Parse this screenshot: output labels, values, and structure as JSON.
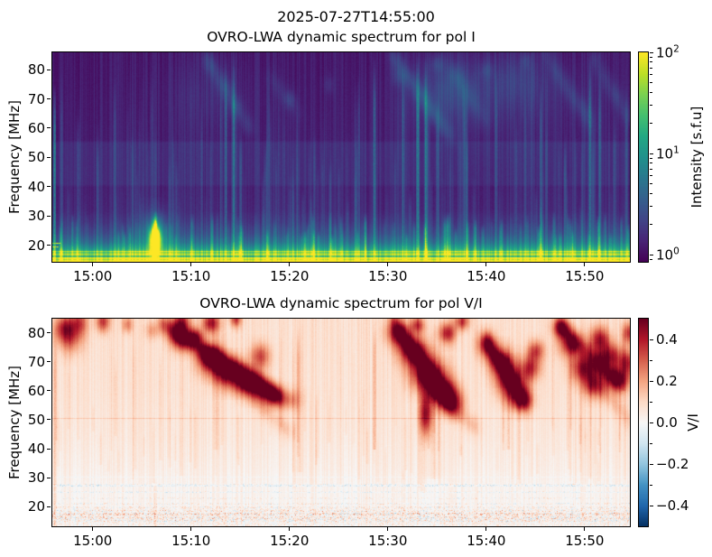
{
  "figure": {
    "suptitle": "2025-07-27T14:55:00",
    "background": "#ffffff",
    "axis_color": "#000000"
  },
  "chart_data": [
    {
      "type": "heatmap",
      "title": "OVRO-LWA dynamic spectrum for pol I",
      "xlabel": "",
      "ylabel": "Frequency [MHz]",
      "x_axis": {
        "unit": "UTC time",
        "tick_labels": [
          "15:00",
          "15:10",
          "15:20",
          "15:30",
          "15:40",
          "15:50"
        ],
        "tick_minutes": [
          0,
          10,
          20,
          30,
          40,
          50
        ],
        "range_minutes": [
          -4.1,
          54.6
        ]
      },
      "y_axis": {
        "unit": "MHz",
        "ticks": [
          20,
          30,
          40,
          50,
          60,
          70,
          80
        ],
        "range": [
          14.3,
          85.9
        ]
      },
      "colorbar": {
        "label": "Intensity [s.f.u]",
        "scale": "log",
        "range": [
          0.85,
          100
        ],
        "ticks": [
          {
            "text": "10",
            "exp": "2",
            "value": 100
          },
          {
            "text": "10",
            "exp": "1",
            "value": 10
          },
          {
            "text": "10",
            "exp": "0",
            "value": 1
          }
        ]
      },
      "colormap": {
        "name": "viridis",
        "stops": [
          [
            0,
            "#440154"
          ],
          [
            0.1,
            "#482475"
          ],
          [
            0.2,
            "#414487"
          ],
          [
            0.3,
            "#355f8d"
          ],
          [
            0.4,
            "#2a788e"
          ],
          [
            0.5,
            "#21918c"
          ],
          [
            0.6,
            "#22a884"
          ],
          [
            0.7,
            "#44bf70"
          ],
          [
            0.8,
            "#7ad151"
          ],
          [
            0.9,
            "#bddf26"
          ],
          [
            1,
            "#fde725"
          ]
        ]
      },
      "description": "Dark purple background with many narrow teal vertical bursts, diffuse drifting emission lanes at 55-86 MHz (strongest 15:25-15:55), a brighter band near 40-55 MHz, a bright yellow-green band below ~20 MHz with dashed RFI rows, and an intense yellow burst near 15:06 at 18-27 MHz.",
      "background_profile": [
        [
          86,
          0.07
        ],
        [
          56,
          0.09
        ],
        [
          55,
          0.135
        ],
        [
          41,
          0.135
        ],
        [
          40,
          0.1
        ],
        [
          32,
          0.115
        ],
        [
          28,
          0.16
        ],
        [
          24,
          0.24
        ],
        [
          21,
          0.36
        ],
        [
          19,
          0.52
        ],
        [
          18,
          0.66
        ],
        [
          17,
          0.84
        ],
        [
          16,
          0.97
        ],
        [
          14.3,
          1
        ]
      ],
      "vstreaks": [
        [
          -3.9,
          75,
          14,
          0.4,
          0.3
        ],
        [
          -3.2,
          80,
          14,
          0.1
        ],
        [
          -1.5,
          65,
          14,
          0.09
        ],
        [
          0.5,
          55,
          14,
          0.07
        ],
        [
          2.2,
          78,
          14,
          0.12
        ],
        [
          4,
          60,
          14,
          0.09
        ],
        [
          6.35,
          32,
          14,
          0.5,
          0.45
        ],
        [
          8.5,
          50,
          14,
          0.09
        ],
        [
          11,
          70,
          14,
          0.1
        ],
        [
          13.5,
          85,
          14,
          0.2
        ],
        [
          14.3,
          85,
          14,
          0.28
        ],
        [
          15,
          60,
          14,
          0.16
        ],
        [
          17.5,
          55,
          14,
          0.09
        ],
        [
          20,
          45,
          14,
          0.07
        ],
        [
          22.5,
          60,
          14,
          0.09
        ],
        [
          25,
          50,
          14,
          0.07
        ],
        [
          27,
          80,
          14,
          0.11
        ],
        [
          28.6,
          85,
          14,
          0.24
        ],
        [
          31.5,
          85,
          14,
          0.2
        ],
        [
          33,
          85,
          14,
          0.33
        ],
        [
          33.8,
          85,
          14,
          0.28
        ],
        [
          35,
          70,
          14,
          0.14
        ],
        [
          38,
          60,
          14,
          0.11
        ],
        [
          41,
          80,
          14,
          0.14
        ],
        [
          43,
          65,
          14,
          0.11
        ],
        [
          45.5,
          75,
          14,
          0.14
        ],
        [
          48,
          60,
          14,
          0.1
        ],
        [
          50.5,
          85,
          14,
          0.26
        ],
        [
          51.5,
          80,
          14,
          0.18
        ],
        [
          53,
          65,
          14,
          0.11
        ],
        [
          54.2,
          75,
          14,
          0.14
        ]
      ],
      "lanes": [
        [
          11.5,
          84,
          16,
          60,
          0.12
        ],
        [
          30.5,
          85,
          36.5,
          57,
          0.14
        ],
        [
          36.5,
          80,
          40,
          62,
          0.08
        ],
        [
          46,
          85,
          50.5,
          62,
          0.1
        ],
        [
          51,
          83,
          54.5,
          63,
          0.11
        ],
        [
          18,
          78,
          21,
          65,
          0.05
        ]
      ],
      "blobs": [
        [
          6.35,
          22,
          0.35,
          3,
          0.85
        ],
        [
          6.35,
          23.5,
          0.9,
          5,
          0.3
        ],
        [
          36,
          74,
          2.2,
          7,
          0.09
        ],
        [
          43,
          77,
          2.2,
          6,
          0.07
        ],
        [
          12,
          72,
          3,
          8,
          0.05
        ],
        [
          44,
          72,
          6,
          10,
          0.045
        ],
        [
          37,
          70,
          4,
          9,
          0.05
        ],
        [
          20,
          70,
          0.4,
          2,
          0.07
        ],
        [
          24,
          75,
          0.4,
          2,
          0.06
        ],
        [
          31,
          78,
          0.5,
          2.5,
          0.09
        ],
        [
          35,
          82,
          0.5,
          2,
          0.09
        ],
        [
          40,
          80,
          0.5,
          2,
          0.07
        ],
        [
          44,
          83,
          0.4,
          2,
          0.07
        ]
      ],
      "dash_rows": [
        [
          20.9,
          0.85
        ],
        [
          19.7,
          0.9
        ],
        [
          22.1,
          0.45
        ]
      ],
      "hlines": [
        [
          18.1,
          0.2,
          1
        ],
        [
          16.6,
          -0.3,
          2
        ],
        [
          15.2,
          -0.12,
          1
        ]
      ],
      "texture": {
        "seed": 13,
        "streaks": 120,
        "streak_strength": [
          0.02,
          0.09
        ],
        "streak_ftop": [
          28,
          86
        ],
        "streak_fbot": [
          14.3,
          14.3
        ],
        "low_streaks": 90,
        "low_strength": [
          0.04,
          0.2
        ],
        "low_ftop": [
          24,
          32
        ],
        "column_noise": 0.04,
        "pixel_noise": 0.012
      }
    },
    {
      "type": "heatmap",
      "title": "OVRO-LWA dynamic spectrum for pol V/I",
      "xlabel": "",
      "ylabel": "Frequency [MHz]",
      "x_axis": {
        "unit": "UTC time",
        "tick_labels": [
          "15:00",
          "15:10",
          "15:20",
          "15:30",
          "15:40",
          "15:50"
        ],
        "tick_minutes": [
          0,
          10,
          20,
          30,
          40,
          50
        ],
        "range_minutes": [
          -4.1,
          54.6
        ]
      },
      "y_axis": {
        "unit": "MHz",
        "ticks": [
          20,
          30,
          40,
          50,
          60,
          70,
          80
        ],
        "range": [
          13.2,
          84.9
        ]
      },
      "colorbar": {
        "label": "V/I",
        "scale": "linear",
        "range": [
          -0.5,
          0.5
        ],
        "ticks": [
          {
            "text": "0.4",
            "value": 0.4
          },
          {
            "text": "0.2",
            "value": 0.2
          },
          {
            "text": "0.0",
            "value": 0
          },
          {
            "text": "−0.2",
            "value": -0.2
          },
          {
            "text": "−0.4",
            "value": -0.4
          }
        ]
      },
      "colormap": {
        "name": "RdBu_r",
        "stops": [
          [
            0,
            "#053061"
          ],
          [
            0.1,
            "#2166ac"
          ],
          [
            0.2,
            "#4393c3"
          ],
          [
            0.3,
            "#92c5de"
          ],
          [
            0.4,
            "#d1e5f0"
          ],
          [
            0.5,
            "#f7f7f7"
          ],
          [
            0.6,
            "#fddbc7"
          ],
          [
            0.7,
            "#f4a582"
          ],
          [
            0.8,
            "#d6604d"
          ],
          [
            0.9,
            "#b2182b"
          ],
          [
            1,
            "#67001f"
          ]
        ]
      },
      "description": "Near-white background with faint pink positive polarization; dark red drifting burst clusters at 55-85 MHz near 15:05-15:20, 15:25-15:38, 15:40-15:46 and 15:47-15:55; speckled blue/red horizontal RFI rows below ~28 MHz.",
      "background_profile": [
        [
          85,
          0.585
        ],
        [
          60,
          0.575
        ],
        [
          45,
          0.557
        ],
        [
          33,
          0.535
        ],
        [
          28,
          0.52
        ],
        [
          13.2,
          0.512
        ]
      ],
      "vstreaks": [
        [
          -3.9,
          86,
          13.2,
          0.12,
          0.4
        ],
        [
          6.3,
          30,
          13.2,
          0.06,
          0.5
        ],
        [
          12.5,
          85,
          40,
          0.05,
          0.8
        ],
        [
          21,
          85,
          32,
          0.05,
          0.8
        ],
        [
          28.6,
          86,
          40,
          0.11,
          0.4
        ],
        [
          33.5,
          85,
          25,
          0.06,
          0.8
        ],
        [
          34.5,
          85,
          30,
          0.04,
          3
        ],
        [
          42.2,
          80,
          40,
          0.08,
          0.5
        ],
        [
          50.5,
          86,
          30,
          0.06,
          0.6
        ],
        [
          53.9,
          85,
          60,
          0.05,
          0.5
        ]
      ],
      "lanes": [
        [
          7,
          83,
          19,
          58,
          0.3
        ],
        [
          30.5,
          84,
          36,
          57,
          0.26
        ],
        [
          40,
          77,
          44,
          56,
          0.25
        ],
        [
          47.5,
          83,
          53.5,
          62,
          0.24
        ],
        [
          16,
          58,
          20,
          46,
          0.09
        ],
        [
          36,
          55,
          39,
          47,
          0.11
        ],
        [
          52,
          60,
          54.5,
          50,
          0.09
        ]
      ],
      "blobs": [
        [
          -3,
          82,
          0.7,
          3,
          0.22
        ],
        [
          -2.3,
          79,
          0.9,
          4,
          0.25
        ],
        [
          -1.4,
          84,
          0.6,
          3,
          0.22
        ],
        [
          1,
          84,
          0.5,
          2.5,
          0.28
        ],
        [
          3.5,
          83,
          0.4,
          2,
          0.18
        ],
        [
          6,
          81,
          0.5,
          2,
          0.12
        ],
        [
          9,
          84,
          0.6,
          2.5,
          0.3
        ],
        [
          10.5,
          79,
          0.5,
          2,
          0.22
        ],
        [
          12,
          83.5,
          0.6,
          2.5,
          0.35
        ],
        [
          14.5,
          85,
          0.4,
          2,
          0.28
        ],
        [
          9,
          78,
          0.8,
          3,
          0.3
        ],
        [
          12,
          71,
          1,
          3.5,
          0.38
        ],
        [
          14,
          66,
          1.2,
          3.5,
          0.42
        ],
        [
          16,
          62,
          1,
          3,
          0.38
        ],
        [
          18,
          59,
          0.8,
          2.5,
          0.28
        ],
        [
          17,
          72,
          0.7,
          3,
          0.25
        ],
        [
          20,
          57,
          0.7,
          2.5,
          0.18
        ],
        [
          31,
          80,
          0.8,
          3,
          0.35
        ],
        [
          32.5,
          74,
          1,
          3.5,
          0.42
        ],
        [
          34,
          66,
          1.2,
          4,
          0.46
        ],
        [
          35.5,
          60,
          1,
          3.5,
          0.42
        ],
        [
          36.5,
          56,
          0.8,
          3,
          0.32
        ],
        [
          33,
          83,
          0.5,
          2,
          0.28
        ],
        [
          36,
          80,
          0.6,
          2.5,
          0.32
        ],
        [
          37.5,
          84,
          0.5,
          2,
          0.28
        ],
        [
          33.8,
          52,
          0.45,
          5,
          0.35
        ],
        [
          40,
          76,
          0.7,
          3,
          0.28
        ],
        [
          41.5,
          70,
          0.9,
          3.5,
          0.38
        ],
        [
          42.5,
          63,
          1,
          4,
          0.42
        ],
        [
          43.5,
          57,
          0.8,
          3,
          0.32
        ],
        [
          44.5,
          68,
          0.7,
          3,
          0.28
        ],
        [
          45,
          74,
          0.6,
          2.5,
          0.26
        ],
        [
          47.5,
          82,
          0.6,
          2.5,
          0.28
        ],
        [
          48.5,
          76,
          0.8,
          3,
          0.32
        ],
        [
          50,
          68,
          1,
          3.5,
          0.38
        ],
        [
          51,
          62,
          0.8,
          3,
          0.32
        ],
        [
          51.5,
          78,
          0.7,
          3,
          0.34
        ],
        [
          52.5,
          72,
          0.8,
          3,
          0.36
        ],
        [
          53.5,
          64,
          0.8,
          3,
          0.32
        ],
        [
          54.3,
          70,
          0.6,
          3,
          0.28
        ],
        [
          54.5,
          80,
          0.5,
          2.5,
          0.28
        ]
      ],
      "dash_rows": [],
      "speckle_rows": [
        [
          27.6,
          0.8,
          0.5,
          0.1,
          -0.02
        ],
        [
          25.2,
          0.6,
          0.4,
          0.09,
          -0.015
        ],
        [
          22.8,
          0.6,
          0.4,
          0.09,
          0
        ],
        [
          21,
          0.5,
          0.5,
          0.11,
          0
        ],
        [
          19.6,
          0.7,
          0.6,
          0.12,
          0.01
        ],
        [
          18.6,
          0.6,
          0.6,
          0.12,
          0.01
        ],
        [
          17.4,
          0.9,
          0.8,
          0.16,
          0.03
        ],
        [
          16.2,
          0.8,
          0.7,
          0.14,
          0.01
        ],
        [
          15.2,
          0.8,
          0.6,
          0.13,
          0
        ]
      ],
      "hlines": [
        [
          50.5,
          0.07,
          1
        ],
        [
          27.6,
          -0.04,
          2
        ],
        [
          25.1,
          -0.03,
          1
        ],
        [
          30.2,
          -0.025,
          1
        ]
      ],
      "texture": {
        "seed": 29,
        "streaks": 130,
        "streak_strength": [
          0.015,
          0.05
        ],
        "streak_ftop": [
          30,
          86
        ],
        "streak_fbot": [
          26,
          48
        ],
        "column_noise": 0.03,
        "pixel_noise": 0.01,
        "speckle_band": [
          13.2,
          19.5,
          0.45,
          0.09,
          0.015
        ]
      }
    }
  ]
}
